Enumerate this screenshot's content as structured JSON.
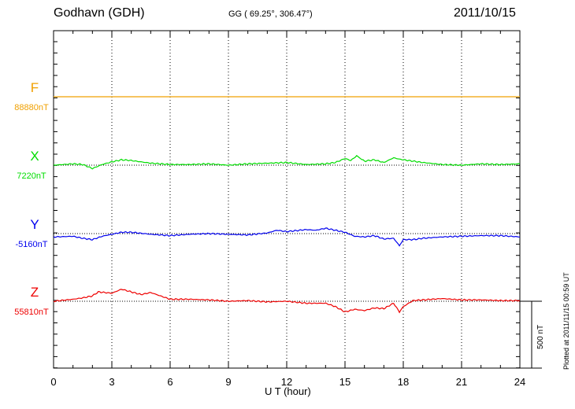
{
  "header": {
    "station": "Godhavn (GDH)",
    "coords": "GG ( 69.25°, 306.47°)",
    "date": "2011/10/15"
  },
  "side_note": "Plotted at 2011/11/15 00:59 UT",
  "scale_label": "500 nT",
  "chart_data": {
    "type": "line",
    "xlabel": "U T (hour)",
    "xlim": [
      0,
      24
    ],
    "xticks": [
      "0",
      "3",
      "6",
      "9",
      "12",
      "15",
      "18",
      "21",
      "24"
    ],
    "grid": "dotted vertical at 3 h intervals",
    "scale_bar_nT": 500,
    "series": [
      {
        "name": "F",
        "baseline": "88880nT",
        "color": "#f0a000",
        "x": [
          0,
          3,
          6,
          9,
          12,
          15,
          18,
          21,
          24
        ],
        "y": [
          0,
          0,
          0,
          0,
          0,
          0,
          0,
          0,
          0
        ]
      },
      {
        "name": "X",
        "baseline": "7220nT",
        "color": "#00dd00",
        "x": [
          0,
          1,
          1.5,
          2,
          2.5,
          3,
          3.5,
          4,
          5,
          6,
          7,
          8,
          9,
          10,
          11,
          12,
          13,
          14,
          14.5,
          15,
          15.3,
          15.6,
          16,
          16.5,
          17,
          17.5,
          17.8,
          18.5,
          19,
          20,
          21,
          22,
          23,
          24
        ],
        "y": [
          0,
          10,
          5,
          -25,
          5,
          25,
          40,
          35,
          15,
          5,
          5,
          10,
          0,
          10,
          15,
          20,
          5,
          10,
          20,
          50,
          35,
          70,
          30,
          40,
          20,
          55,
          45,
          30,
          20,
          5,
          0,
          10,
          5,
          10
        ]
      },
      {
        "name": "Y",
        "baseline": "-5160nT",
        "color": "#0000ee",
        "x": [
          0,
          1,
          1.5,
          2,
          2.5,
          3,
          3.5,
          4,
          5,
          6,
          7,
          8,
          9,
          10,
          11,
          11.5,
          12,
          13,
          13.5,
          14,
          15,
          15.5,
          16,
          16.5,
          17,
          17.5,
          17.8,
          18,
          18.5,
          19,
          20,
          21,
          22,
          23,
          24
        ],
        "y": [
          -25,
          -20,
          -35,
          -45,
          -20,
          -5,
          10,
          10,
          -5,
          -15,
          -5,
          0,
          -5,
          -10,
          5,
          25,
          15,
          30,
          25,
          40,
          10,
          -20,
          -25,
          -15,
          -40,
          -35,
          -90,
          -45,
          -45,
          -35,
          -25,
          -20,
          -15,
          -15,
          -25
        ]
      },
      {
        "name": "Z",
        "baseline": "55810nT",
        "color": "#ee0000",
        "x": [
          0,
          1,
          1.5,
          2,
          2.3,
          3,
          3.5,
          4,
          4.5,
          5,
          6,
          7,
          8,
          9,
          10,
          11,
          12,
          13,
          14,
          14.5,
          15,
          15.5,
          16,
          16.5,
          17,
          17.5,
          17.8,
          18,
          18.5,
          19,
          20,
          21,
          22,
          23,
          24
        ],
        "y": [
          0,
          15,
          25,
          40,
          70,
          60,
          90,
          70,
          50,
          65,
          15,
          15,
          10,
          0,
          5,
          -5,
          0,
          -15,
          -15,
          -40,
          -80,
          -60,
          -70,
          -50,
          -55,
          -15,
          -80,
          -40,
          5,
          10,
          20,
          10,
          10,
          5,
          5
        ]
      }
    ]
  }
}
